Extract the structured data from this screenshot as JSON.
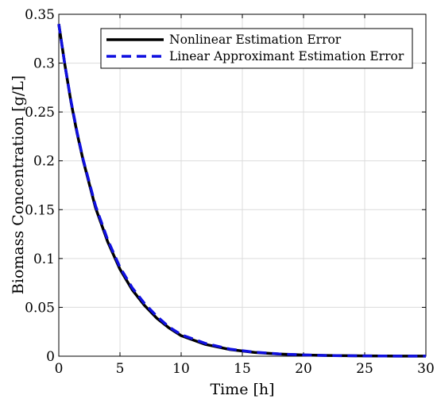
{
  "chart_data": {
    "type": "line",
    "xlabel": "Time [h]",
    "ylabel": "Biomass Concentration [g/L]",
    "xlim": [
      0,
      30
    ],
    "ylim": [
      0,
      0.35
    ],
    "xticks": [
      0,
      5,
      10,
      15,
      20,
      25,
      30
    ],
    "yticks": [
      0,
      0.05,
      0.1,
      0.15,
      0.2,
      0.25,
      0.3,
      0.35
    ],
    "ytick_labels": [
      "0",
      "0.05",
      "0.1",
      "0.15",
      "0.2",
      "0.25",
      "0.3",
      "0.35"
    ],
    "grid": true,
    "legend_position": "top-right",
    "series": [
      {
        "name": "Nonlinear Estimation Error",
        "color": "#000000",
        "style": "solid",
        "x": [
          0,
          0.5,
          1,
          1.5,
          2,
          3,
          4,
          5,
          6,
          7,
          8,
          9,
          10,
          12,
          14,
          16,
          18,
          20,
          22,
          25,
          28,
          30
        ],
        "y": [
          0.34,
          0.298,
          0.26,
          0.228,
          0.2,
          0.152,
          0.117,
          0.089,
          0.068,
          0.052,
          0.039,
          0.029,
          0.021,
          0.012,
          0.0068,
          0.0039,
          0.0022,
          0.0012,
          0.0007,
          0.0003,
          0.0001,
          0.0001
        ]
      },
      {
        "name": "Linear Approximant Estimation Error",
        "color": "#1010e0",
        "style": "dashed",
        "x": [
          0,
          0.5,
          1,
          1.5,
          2,
          3,
          4,
          5,
          6,
          7,
          8,
          9,
          10,
          12,
          14,
          16,
          18,
          20,
          22,
          25,
          28,
          30
        ],
        "y": [
          0.34,
          0.298,
          0.261,
          0.229,
          0.201,
          0.154,
          0.119,
          0.091,
          0.07,
          0.054,
          0.041,
          0.03,
          0.022,
          0.013,
          0.0072,
          0.0041,
          0.0023,
          0.0013,
          0.0007,
          0.0003,
          0.0001,
          0.0001
        ]
      }
    ]
  }
}
